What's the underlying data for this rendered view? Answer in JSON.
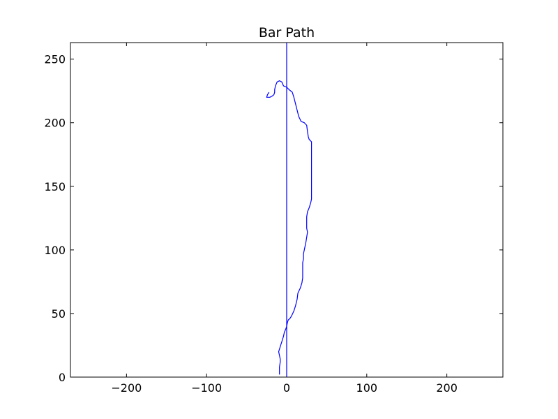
{
  "chart_data": {
    "type": "line",
    "title": "Bar Path",
    "xlabel": "",
    "ylabel": "",
    "xlim": [
      -270,
      270
    ],
    "ylim": [
      0,
      263
    ],
    "x_ticks": [
      -200,
      -100,
      0,
      100,
      200
    ],
    "x_tick_labels": [
      "−200",
      "−100",
      "0",
      "100",
      "200"
    ],
    "y_ticks": [
      0,
      50,
      100,
      150,
      200,
      250
    ],
    "y_tick_labels": [
      "0",
      "50",
      "100",
      "150",
      "200",
      "250"
    ],
    "grid": false,
    "reference_line": {
      "x": 0,
      "color": "#0000ff"
    },
    "series": [
      {
        "color": "#0000ff",
        "points": [
          [
            -9,
            2
          ],
          [
            -9,
            8
          ],
          [
            -8,
            12
          ],
          [
            -8,
            14
          ],
          [
            -9,
            17
          ],
          [
            -10,
            20
          ],
          [
            -8,
            24
          ],
          [
            -6,
            28
          ],
          [
            -4,
            32
          ],
          [
            -3,
            35
          ],
          [
            -1,
            38
          ],
          [
            0,
            40
          ],
          [
            1,
            43
          ],
          [
            2,
            45
          ],
          [
            4,
            46
          ],
          [
            6,
            48
          ],
          [
            9,
            52
          ],
          [
            11,
            56
          ],
          [
            13,
            61
          ],
          [
            14,
            66
          ],
          [
            17,
            70
          ],
          [
            19,
            74
          ],
          [
            20,
            78
          ],
          [
            20,
            85
          ],
          [
            20,
            90
          ],
          [
            21,
            93
          ],
          [
            21,
            97
          ],
          [
            22,
            100
          ],
          [
            23,
            103
          ],
          [
            24,
            106
          ],
          [
            25,
            110
          ],
          [
            26,
            114
          ],
          [
            25,
            117
          ],
          [
            25,
            122
          ],
          [
            25,
            126
          ],
          [
            26,
            130
          ],
          [
            28,
            133
          ],
          [
            30,
            137
          ],
          [
            31,
            140
          ],
          [
            31,
            150
          ],
          [
            31,
            160
          ],
          [
            31,
            170
          ],
          [
            31,
            180
          ],
          [
            31,
            185
          ],
          [
            28,
            187
          ],
          [
            27,
            189
          ],
          [
            26,
            193
          ],
          [
            25,
            198
          ],
          [
            22,
            200
          ],
          [
            18,
            201
          ],
          [
            15,
            205
          ],
          [
            13,
            210
          ],
          [
            11,
            215
          ],
          [
            9,
            220
          ],
          [
            7,
            224
          ],
          [
            3,
            226
          ],
          [
            0,
            228
          ],
          [
            -4,
            229
          ],
          [
            -6,
            232
          ],
          [
            -9,
            233
          ],
          [
            -12,
            232
          ],
          [
            -14,
            229
          ],
          [
            -15,
            226
          ],
          [
            -15,
            224
          ],
          [
            -16,
            222
          ],
          [
            -18,
            221
          ],
          [
            -21,
            220
          ],
          [
            -24,
            220
          ],
          [
            -25,
            220
          ],
          [
            -24,
            222
          ],
          [
            -22,
            224
          ]
        ]
      }
    ]
  }
}
